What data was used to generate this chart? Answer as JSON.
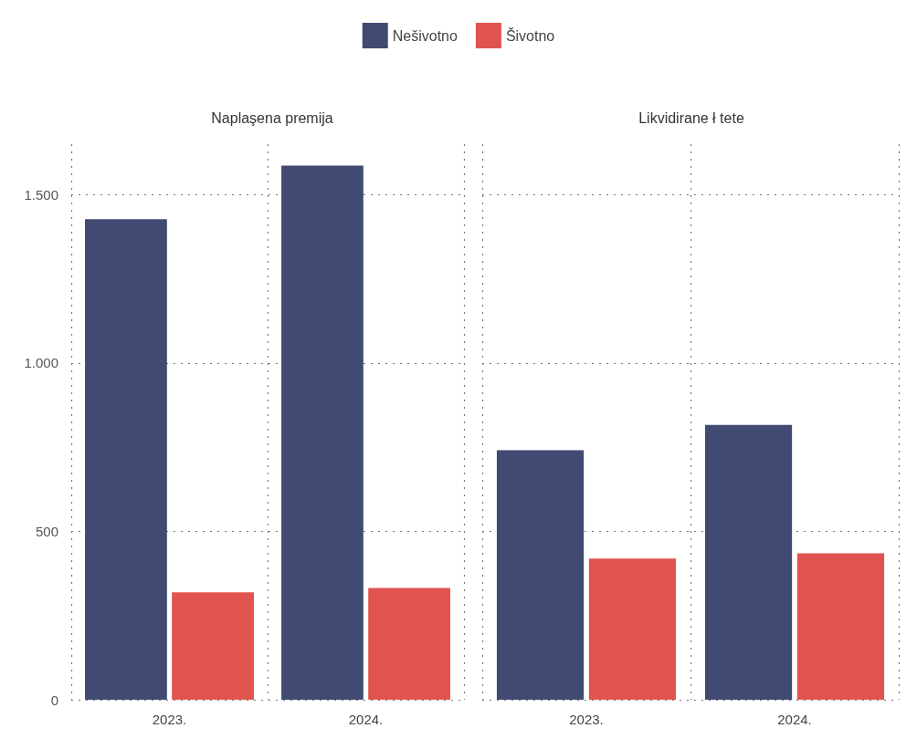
{
  "chart_data": [
    {
      "type": "bar",
      "title": "Naplaşena premija",
      "categories": [
        "2023.",
        "2024."
      ],
      "series": [
        {
          "name": "Nešivotno",
          "color": "#414a72",
          "values": [
            1427,
            1586
          ]
        },
        {
          "name": "Šivotno",
          "color": "#e0534f",
          "values": [
            319,
            332
          ]
        }
      ],
      "ylim": [
        0,
        1650
      ],
      "yticks": [
        {
          "value": 0,
          "label": "0"
        },
        {
          "value": 500,
          "label": "500"
        },
        {
          "value": 1000,
          "label": "1.000"
        },
        {
          "value": 1500,
          "label": "1.500"
        }
      ],
      "grid": true,
      "legend": "top"
    },
    {
      "type": "bar",
      "title": "Likvidirane ł tete",
      "categories": [
        "2023.",
        "2024."
      ],
      "series": [
        {
          "color": "#414a72",
          "values": [
            741,
            816
          ]
        },
        {
          "color": "#e0534f",
          "values": [
            419,
            435
          ]
        }
      ],
      "ylim": [
        0,
        1650
      ],
      "yticks": [
        0,
        500,
        1000,
        1500
      ],
      "grid": true,
      "tick_labels": "x"
    }
  ]
}
